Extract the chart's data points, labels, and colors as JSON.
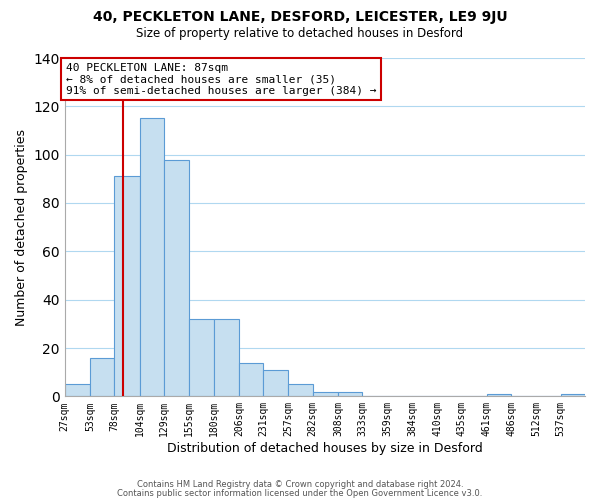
{
  "title1": "40, PECKLETON LANE, DESFORD, LEICESTER, LE9 9JU",
  "title2": "Size of property relative to detached houses in Desford",
  "xlabel": "Distribution of detached houses by size in Desford",
  "ylabel": "Number of detached properties",
  "bin_labels": [
    "27sqm",
    "53sqm",
    "78sqm",
    "104sqm",
    "129sqm",
    "155sqm",
    "180sqm",
    "206sqm",
    "231sqm",
    "257sqm",
    "282sqm",
    "308sqm",
    "333sqm",
    "359sqm",
    "384sqm",
    "410sqm",
    "435sqm",
    "461sqm",
    "486sqm",
    "512sqm",
    "537sqm"
  ],
  "bar_heights": [
    5,
    16,
    91,
    115,
    98,
    32,
    32,
    14,
    11,
    5,
    2,
    2,
    0,
    0,
    0,
    0,
    0,
    1,
    0,
    0,
    1
  ],
  "bar_color": "#c6dff0",
  "bar_edge_color": "#5b9bd5",
  "ylim": [
    0,
    140
  ],
  "yticks": [
    0,
    20,
    40,
    60,
    80,
    100,
    120,
    140
  ],
  "property_size": 87,
  "annotation_line1": "40 PECKLETON LANE: 87sqm",
  "annotation_line2": "← 8% of detached houses are smaller (35)",
  "annotation_line3": "91% of semi-detached houses are larger (384) →",
  "vline_color": "#cc0000",
  "annotation_box_edge": "#cc0000",
  "footnote1": "Contains HM Land Registry data © Crown copyright and database right 2024.",
  "footnote2": "Contains public sector information licensed under the Open Government Licence v3.0.",
  "bin_edges": [
    27,
    53,
    78,
    104,
    129,
    155,
    180,
    206,
    231,
    257,
    282,
    308,
    333,
    359,
    384,
    410,
    435,
    461,
    486,
    512,
    537,
    562
  ],
  "grid_color": "#b0d8f0"
}
